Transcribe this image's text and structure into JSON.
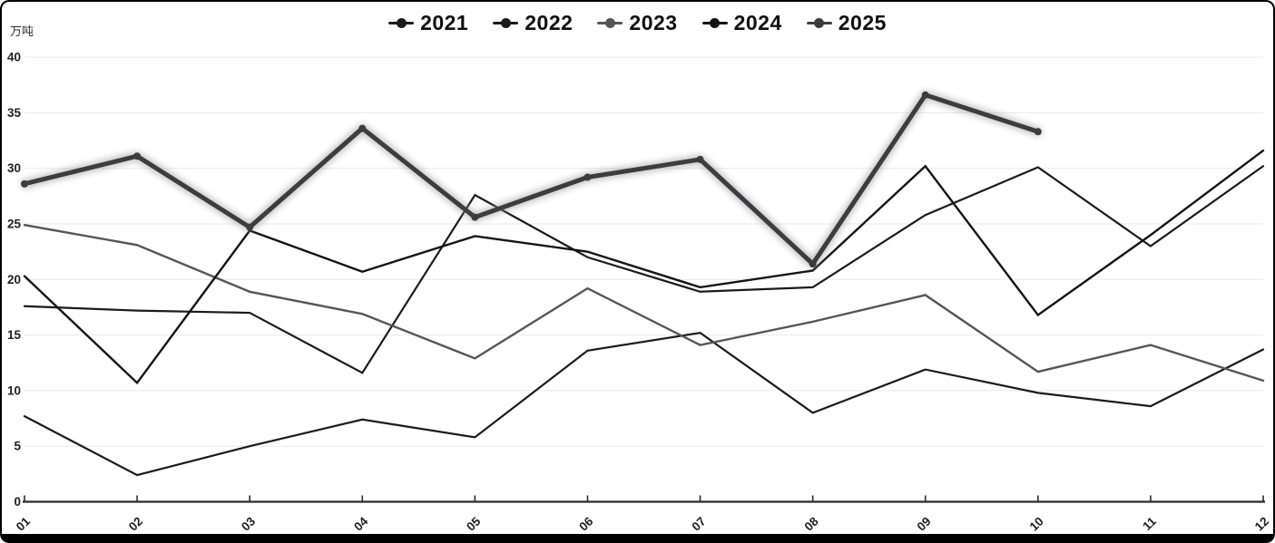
{
  "chart_data": {
    "type": "line",
    "title": "",
    "ylabel": "万吨",
    "x": [
      "01",
      "02",
      "03",
      "04",
      "05",
      "06",
      "07",
      "08",
      "09",
      "10",
      "11",
      "12"
    ],
    "y_ticks": [
      0,
      5,
      10,
      15,
      20,
      25,
      30,
      35,
      40
    ],
    "ylim": [
      0,
      40
    ],
    "grid": true,
    "legend_position": "top-center",
    "background": "#ffffff",
    "series": [
      {
        "name": "2021",
        "color": "#1b1b1b",
        "width": 2.2,
        "glow": false,
        "show_markers": false,
        "values": [
          7.7,
          2.4,
          5.0,
          7.4,
          5.8,
          13.6,
          15.2,
          8.0,
          11.9,
          9.8,
          8.6,
          13.7
        ]
      },
      {
        "name": "2022",
        "color": "#1b1b1b",
        "width": 2.2,
        "glow": false,
        "show_markers": false,
        "values": [
          17.6,
          17.2,
          17.0,
          11.6,
          27.6,
          22.0,
          18.9,
          19.3,
          25.8,
          30.1,
          23.0,
          30.2
        ]
      },
      {
        "name": "2023",
        "color": "#55555a",
        "width": 2.4,
        "glow": false,
        "show_markers": false,
        "values": [
          24.9,
          23.1,
          18.9,
          16.9,
          12.9,
          19.2,
          14.1,
          16.2,
          18.6,
          11.7,
          14.1,
          10.9
        ]
      },
      {
        "name": "2024",
        "color": "#141414",
        "width": 2.4,
        "glow": false,
        "show_markers": false,
        "values": [
          20.3,
          10.7,
          24.4,
          20.7,
          23.9,
          22.5,
          19.3,
          20.8,
          30.2,
          16.8,
          24.0,
          31.6
        ]
      },
      {
        "name": "2025",
        "color": "#3d3d40",
        "width": 5,
        "glow": true,
        "show_markers": true,
        "values": [
          28.6,
          31.1,
          24.7,
          33.6,
          25.6,
          29.2,
          30.8,
          21.4,
          36.6,
          33.3
        ]
      }
    ]
  },
  "colors": {
    "grid": "#e9e9e9",
    "axis": "#2b2b2b",
    "tick_label": "#1f1f1f",
    "legend_text": "#101010",
    "frame": "#000000",
    "glow": "#8f8f8f"
  }
}
